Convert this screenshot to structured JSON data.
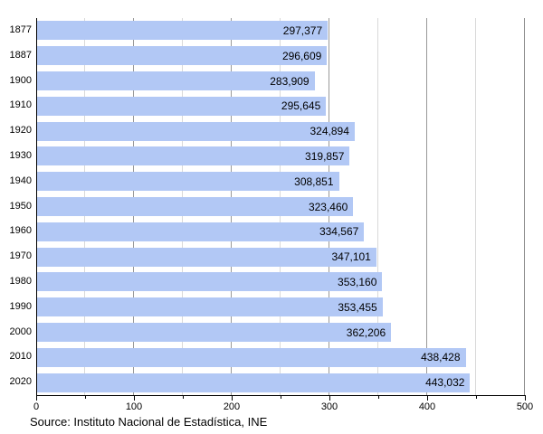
{
  "chart_data": {
    "type": "bar",
    "orientation": "horizontal",
    "categories": [
      "1877",
      "1887",
      "1900",
      "1910",
      "1920",
      "1930",
      "1940",
      "1950",
      "1960",
      "1970",
      "1980",
      "1990",
      "2000",
      "2010",
      "2020"
    ],
    "values": [
      297377,
      296609,
      283909,
      295645,
      324894,
      319857,
      308851,
      323460,
      334567,
      347101,
      353160,
      353455,
      362206,
      438428,
      443032
    ],
    "display_values": [
      "297,377",
      "296,609",
      "283,909",
      "295,645",
      "324,894",
      "319,857",
      "308,851",
      "323,460",
      "334,567",
      "347,101",
      "353,160",
      "353,455",
      "362,206",
      "438,428",
      "443,032"
    ],
    "xlim": [
      0,
      500
    ],
    "x_major_ticks": [
      0,
      100,
      200,
      300,
      400,
      500
    ],
    "x_tick_labels": [
      "0",
      "100",
      "200",
      "300",
      "400",
      "500"
    ],
    "x_minor_tick_step": 50,
    "values_axis_divisor": 1000,
    "grid": true,
    "legend": false,
    "colors": {
      "bar": "#b2c8f5",
      "grid_major": "#999999",
      "grid_minor": "#d9d9d9",
      "axis": "#000000",
      "text": "#000000"
    },
    "source": "Source: Instituto Nacional de Estadística, INE"
  }
}
